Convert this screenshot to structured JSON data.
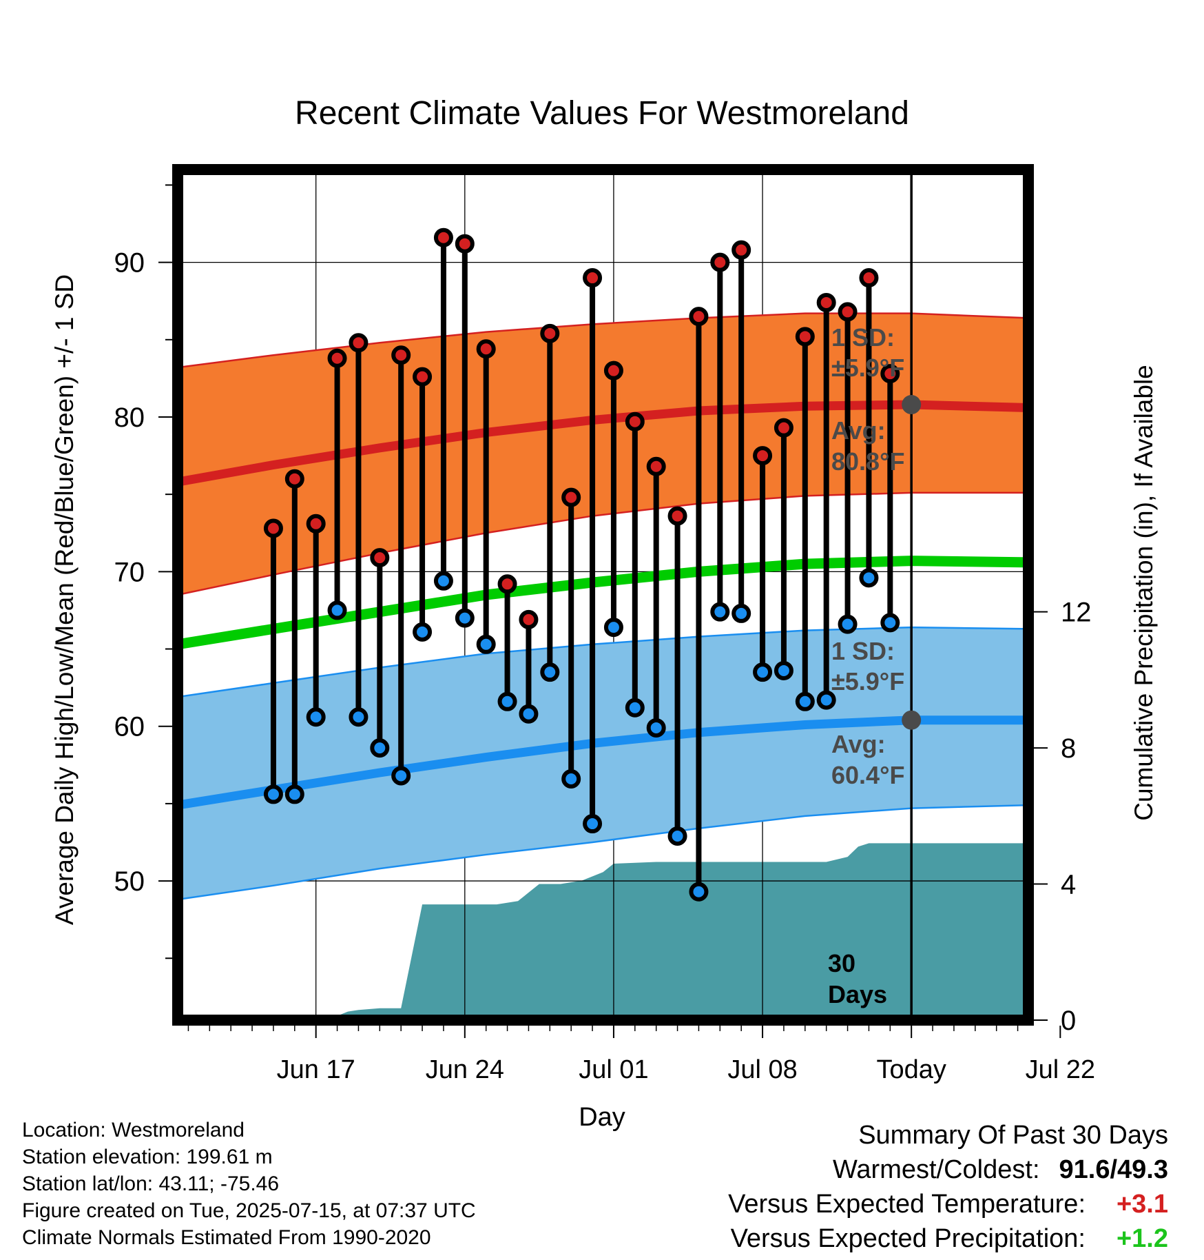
{
  "title": "Recent Climate Values For Westmoreland",
  "x_axis_label": "Day",
  "y_left_label": "Average Daily High/Low/Mean (Red/Blue/Green) +/- 1 SD",
  "y_right_label": "Cumulative Precipitation (in), If Available",
  "x_tick_labels": [
    "Jun 17",
    "Jun 24",
    "Jul 01",
    "Jul 08",
    "Today",
    "Jul 22"
  ],
  "annotations": {
    "high_sd": [
      "1 SD:",
      "±5.9°F"
    ],
    "high_avg": [
      "Avg:",
      "80.8°F"
    ],
    "low_sd": [
      "1 SD:",
      "±5.9°F"
    ],
    "low_avg": [
      "Avg:",
      "60.4°F"
    ],
    "window": [
      "30",
      "Days"
    ]
  },
  "footer": {
    "location": "Location: Westmoreland",
    "elevation": "Station elevation: 199.61 m",
    "latlon": "Station lat/lon: 43.11; -75.46",
    "created": "Figure created on Tue, 2025-07-15, at 07:37 UTC",
    "normals": "Climate Normals Estimated From 1990-2020"
  },
  "summary": {
    "heading": "Summary Of Past 30 Days",
    "warm_cold_label": "Warmest/Coldest:",
    "warm_cold_value": "91.6/49.3",
    "temp_label": "Versus Expected Temperature:",
    "temp_value": "+3.1",
    "precip_label": "Versus Expected Precipitation:",
    "precip_value": "+1.2"
  },
  "colors": {
    "high": "#d42020",
    "high_band": "#f47a2e",
    "mean": "#00cc00",
    "low": "#1a8ef0",
    "low_band": "#80c0e8",
    "precip": "#4a9ca4",
    "annotation": "#4a4a4a"
  },
  "chart_data": {
    "type": "line",
    "x_unit": "day offset from Jul 15 (Today)",
    "xlim": [
      -34.5,
      5.5
    ],
    "ylim_left": [
      41,
      96
    ],
    "ylim_right": [
      0,
      25
    ],
    "y_ticks_left": [
      50,
      60,
      70,
      80,
      90
    ],
    "y_ticks_right": [
      0,
      4,
      8,
      12
    ],
    "x_ticks": [
      -28,
      -21,
      -14,
      -7,
      0,
      7
    ],
    "grid": true,
    "observed": {
      "x": [
        -30,
        -29,
        -28,
        -27,
        -26,
        -25,
        -24,
        -23,
        -22,
        -21,
        -20,
        -19,
        -18,
        -17,
        -16,
        -15,
        -14,
        -13,
        -12,
        -11,
        -10,
        -9,
        -8,
        -7,
        -6,
        -5,
        -4,
        -3,
        -2,
        -1
      ],
      "high": [
        72.8,
        76.0,
        73.1,
        83.8,
        84.8,
        70.9,
        84.0,
        82.6,
        91.6,
        91.2,
        84.4,
        69.2,
        66.9,
        85.4,
        74.8,
        89.0,
        83.0,
        79.7,
        76.8,
        73.6,
        86.5,
        90.0,
        90.8,
        77.5,
        79.3,
        85.2,
        87.4,
        86.8,
        89.0,
        82.8
      ],
      "low": [
        55.6,
        55.6,
        60.6,
        67.5,
        60.6,
        58.6,
        56.8,
        66.1,
        69.4,
        67.0,
        65.3,
        61.6,
        60.8,
        63.5,
        56.6,
        53.7,
        66.4,
        61.2,
        59.9,
        52.9,
        49.3,
        67.4,
        67.3,
        63.5,
        63.6,
        61.6,
        61.7,
        66.6,
        69.6,
        66.7
      ]
    },
    "normals": {
      "x": [
        -34.5,
        -30,
        -25,
        -20,
        -15,
        -10,
        -5,
        0,
        5.5
      ],
      "high_avg": [
        75.8,
        76.9,
        78.0,
        79.0,
        79.8,
        80.4,
        80.7,
        80.8,
        80.6
      ],
      "high_upper": [
        83.2,
        84.0,
        84.8,
        85.5,
        86.0,
        86.4,
        86.7,
        86.7,
        86.4
      ],
      "high_lower": [
        68.5,
        69.8,
        71.2,
        72.5,
        73.6,
        74.4,
        74.9,
        75.1,
        75.1
      ],
      "mean_avg": [
        65.3,
        66.3,
        67.4,
        68.5,
        69.3,
        70.0,
        70.5,
        70.7,
        70.6
      ],
      "low_avg": [
        54.9,
        55.9,
        57.0,
        58.0,
        58.9,
        59.6,
        60.1,
        60.4,
        60.4
      ],
      "low_upper": [
        61.9,
        62.8,
        63.8,
        64.7,
        65.3,
        65.8,
        66.2,
        66.4,
        66.3
      ],
      "low_lower": [
        48.8,
        49.7,
        50.8,
        51.7,
        52.5,
        53.4,
        54.2,
        54.7,
        54.9
      ]
    },
    "avg_markers": [
      {
        "x": 0,
        "y": 80.8
      },
      {
        "x": 0,
        "y": 60.4
      }
    ],
    "precip_cumulative": {
      "x": [
        -34.5,
        -27.5,
        -26.5,
        -26,
        -25,
        -24,
        -23,
        -22,
        -19.5,
        -18.5,
        -17.5,
        -16.5,
        -15.5,
        -14.5,
        -14,
        -12,
        -9,
        -6,
        -4,
        -3,
        -2.5,
        -2,
        0,
        5.5
      ],
      "y": [
        0,
        0,
        0.25,
        0.3,
        0.35,
        0.35,
        3.4,
        3.4,
        3.4,
        3.5,
        4.0,
        4.0,
        4.1,
        4.35,
        4.6,
        4.65,
        4.65,
        4.65,
        4.65,
        4.8,
        5.1,
        5.2,
        5.2,
        5.2
      ]
    },
    "today_x": 0
  }
}
